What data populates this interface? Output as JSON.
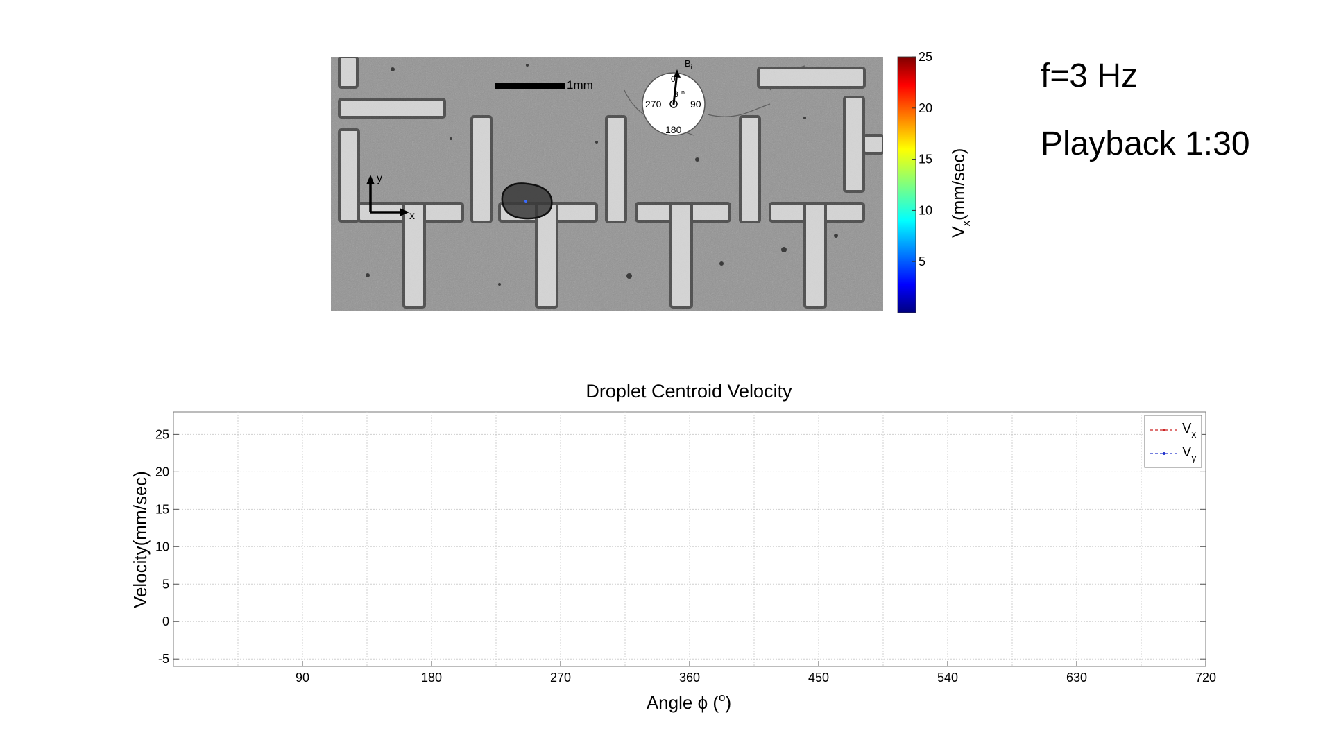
{
  "header": {
    "frequency_label": "f=3 Hz",
    "playback_label": "Playback 1:30"
  },
  "micrograph": {
    "scale_bar_label": "1mm",
    "axes_labels": {
      "x": "x",
      "y": "y"
    },
    "compass": {
      "field_label": "B",
      "field_subscript": "i",
      "normal_label": "B",
      "normal_subscript": "n",
      "angle_0": "0",
      "angle_90": "90",
      "angle_180": "180",
      "angle_270": "270"
    },
    "droplet_color": "#3a3a3a"
  },
  "colorbar": {
    "ticks": [
      "5",
      "10",
      "15",
      "20",
      "25"
    ],
    "tick_values": [
      5,
      10,
      15,
      20,
      25
    ],
    "range": [
      0,
      25
    ],
    "label_main": "V",
    "label_sub": "x",
    "label_unit": "(mm/sec)",
    "colormap": "jet"
  },
  "chart_data": {
    "type": "line",
    "title": "Droplet Centroid Velocity",
    "xlabel": "Angle ϕ (°)",
    "xlabel_main": "Angle ϕ (",
    "xlabel_sup": "o",
    "xlabel_close": ")",
    "ylabel": "Velocity(mm/sec)",
    "xlim": [
      0,
      720
    ],
    "ylim": [
      -6,
      28
    ],
    "x_ticks": [
      90,
      180,
      270,
      360,
      450,
      540,
      630,
      720
    ],
    "y_ticks": [
      -5,
      0,
      5,
      10,
      15,
      20,
      25
    ],
    "grid": true,
    "legend_position": "top-right",
    "series": [
      {
        "name": "Vx",
        "legend_main": "V",
        "legend_sub": "x",
        "color": "#cc2222",
        "marker_color": "#cc2222",
        "style": "dashed",
        "x": [],
        "y": []
      },
      {
        "name": "Vy",
        "legend_main": "V",
        "legend_sub": "y",
        "color": "#2233cc",
        "marker_color": "#2233cc",
        "style": "dashed",
        "x": [],
        "y": []
      }
    ]
  }
}
